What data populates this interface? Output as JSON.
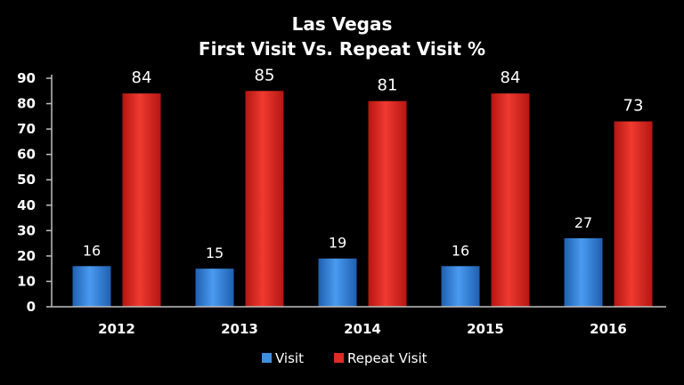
{
  "chart_data": {
    "type": "bar",
    "title": "Las Vegas",
    "subtitle": "First Visit Vs. Repeat Visit %",
    "categories": [
      "2012",
      "2013",
      "2014",
      "2015",
      "2016"
    ],
    "series": [
      {
        "name": "Visit",
        "values": [
          16,
          15,
          19,
          16,
          27
        ],
        "color": "#3f8fe0"
      },
      {
        "name": "Repeat Visit",
        "values": [
          84,
          85,
          81,
          84,
          73
        ],
        "color": "#e02a24"
      }
    ],
    "yticks": [
      "0",
      "10",
      "20",
      "30",
      "40",
      "50",
      "60",
      "70",
      "80",
      "90"
    ],
    "ylim": [
      0,
      90
    ],
    "grid": false,
    "legend": "bottom",
    "background": "#000000",
    "axis_color": "#bfbfbf",
    "text_color": "#ffffff"
  }
}
